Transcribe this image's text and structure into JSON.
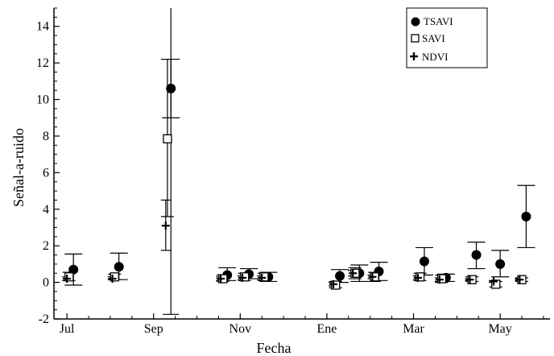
{
  "chart_data": {
    "type": "scatter",
    "xlabel": "Fecha",
    "ylabel": "Señal-a-ruido",
    "ylim": [
      -2,
      15
    ],
    "y_ticks": [
      -2,
      0,
      2,
      4,
      6,
      8,
      10,
      12,
      14
    ],
    "x_ticks": [
      "Jul",
      "Sep",
      "Nov",
      "Ene",
      "Mar",
      "May"
    ],
    "x_tick_positions": [
      0,
      2,
      4,
      6,
      8,
      10
    ],
    "xlim": [
      -0.3,
      11.15
    ],
    "legend_position": "top-right",
    "error_bars": true,
    "series": [
      {
        "name": "TSAVI",
        "marker": "filled-circle",
        "points": [
          {
            "x": 0.15,
            "y": 0.7,
            "low": -0.15,
            "high": 1.55
          },
          {
            "x": 1.2,
            "y": 0.85,
            "low": 0.15,
            "high": 1.6
          },
          {
            "x": 2.4,
            "y": 10.6,
            "low": 9.0,
            "high": 12.2
          },
          {
            "x": 3.7,
            "y": 0.4,
            "low": 0.1,
            "high": 0.8
          },
          {
            "x": 4.2,
            "y": 0.45,
            "low": 0.2,
            "high": 0.75
          },
          {
            "x": 4.65,
            "y": 0.3,
            "low": 0.05,
            "high": 0.55
          },
          {
            "x": 6.3,
            "y": 0.35,
            "low": 0.0,
            "high": 0.7
          },
          {
            "x": 6.75,
            "y": 0.5,
            "low": 0.05,
            "high": 0.95
          },
          {
            "x": 7.2,
            "y": 0.6,
            "low": 0.1,
            "high": 1.1
          },
          {
            "x": 8.25,
            "y": 1.15,
            "low": 0.4,
            "high": 1.9
          },
          {
            "x": 8.75,
            "y": 0.25,
            "low": 0.05,
            "high": 0.45
          },
          {
            "x": 9.45,
            "y": 1.5,
            "low": 0.75,
            "high": 2.2
          },
          {
            "x": 10.0,
            "y": 1.0,
            "low": 0.3,
            "high": 1.75
          },
          {
            "x": 10.6,
            "y": 3.6,
            "low": 1.9,
            "high": 5.3
          }
        ]
      },
      {
        "name": "SAVI",
        "marker": "open-square",
        "points": [
          {
            "x": 0.05,
            "y": 0.3,
            "low": 0.1,
            "high": 0.55
          },
          {
            "x": 1.1,
            "y": 0.3,
            "low": 0.15,
            "high": 0.45
          },
          {
            "x": 2.32,
            "y": 7.85,
            "low": 3.6,
            "high": 12.2
          },
          {
            "x": 3.6,
            "y": 0.2,
            "low": 0.05,
            "high": 0.4
          },
          {
            "x": 4.1,
            "y": 0.3,
            "low": 0.1,
            "high": 0.5
          },
          {
            "x": 4.55,
            "y": 0.3,
            "low": 0.1,
            "high": 0.5
          },
          {
            "x": 6.2,
            "y": -0.15,
            "low": -0.3,
            "high": 0.05
          },
          {
            "x": 6.65,
            "y": 0.5,
            "low": 0.2,
            "high": 0.8
          },
          {
            "x": 7.1,
            "y": 0.3,
            "low": 0.05,
            "high": 0.55
          },
          {
            "x": 8.15,
            "y": 0.3,
            "low": 0.1,
            "high": 0.5
          },
          {
            "x": 8.65,
            "y": 0.2,
            "low": 0.0,
            "high": 0.4
          },
          {
            "x": 9.35,
            "y": 0.15,
            "low": 0.05,
            "high": 0.3
          },
          {
            "x": 9.9,
            "y": -0.1,
            "low": -0.25,
            "high": 0.05
          },
          {
            "x": 10.5,
            "y": 0.15,
            "low": 0.05,
            "high": 0.25
          }
        ]
      },
      {
        "name": "NDVI",
        "marker": "plus",
        "points": [
          {
            "x": 0.0,
            "y": 0.2,
            "low": 0.1,
            "high": 0.3
          },
          {
            "x": 1.05,
            "y": 0.2,
            "low": 0.15,
            "high": 0.3
          },
          {
            "x": 2.28,
            "y": 3.1,
            "low": 1.75,
            "high": 4.5
          },
          {
            "x": 3.55,
            "y": 0.2,
            "low": 0.1,
            "high": 0.3
          },
          {
            "x": 4.05,
            "y": 0.25,
            "low": 0.15,
            "high": 0.35
          },
          {
            "x": 4.5,
            "y": 0.25,
            "low": 0.15,
            "high": 0.35
          },
          {
            "x": 6.15,
            "y": -0.1,
            "low": -0.2,
            "high": 0.0
          },
          {
            "x": 6.6,
            "y": 0.5,
            "low": 0.35,
            "high": 0.65
          },
          {
            "x": 7.05,
            "y": 0.3,
            "low": 0.2,
            "high": 0.4
          },
          {
            "x": 8.1,
            "y": 0.25,
            "low": 0.15,
            "high": 0.35
          },
          {
            "x": 8.6,
            "y": 0.15,
            "low": 0.05,
            "high": 0.25
          },
          {
            "x": 9.3,
            "y": 0.15,
            "low": 0.1,
            "high": 0.2
          },
          {
            "x": 9.85,
            "y": 0.05,
            "low": 0.0,
            "high": 0.1
          },
          {
            "x": 10.45,
            "y": 0.15,
            "low": 0.1,
            "high": 0.2
          }
        ]
      }
    ],
    "extra_error_bars": [
      {
        "x": 2.4,
        "low": -1.75,
        "high": 15.0
      }
    ]
  },
  "colors": {
    "ink": "#000000",
    "background": "#ffffff"
  }
}
